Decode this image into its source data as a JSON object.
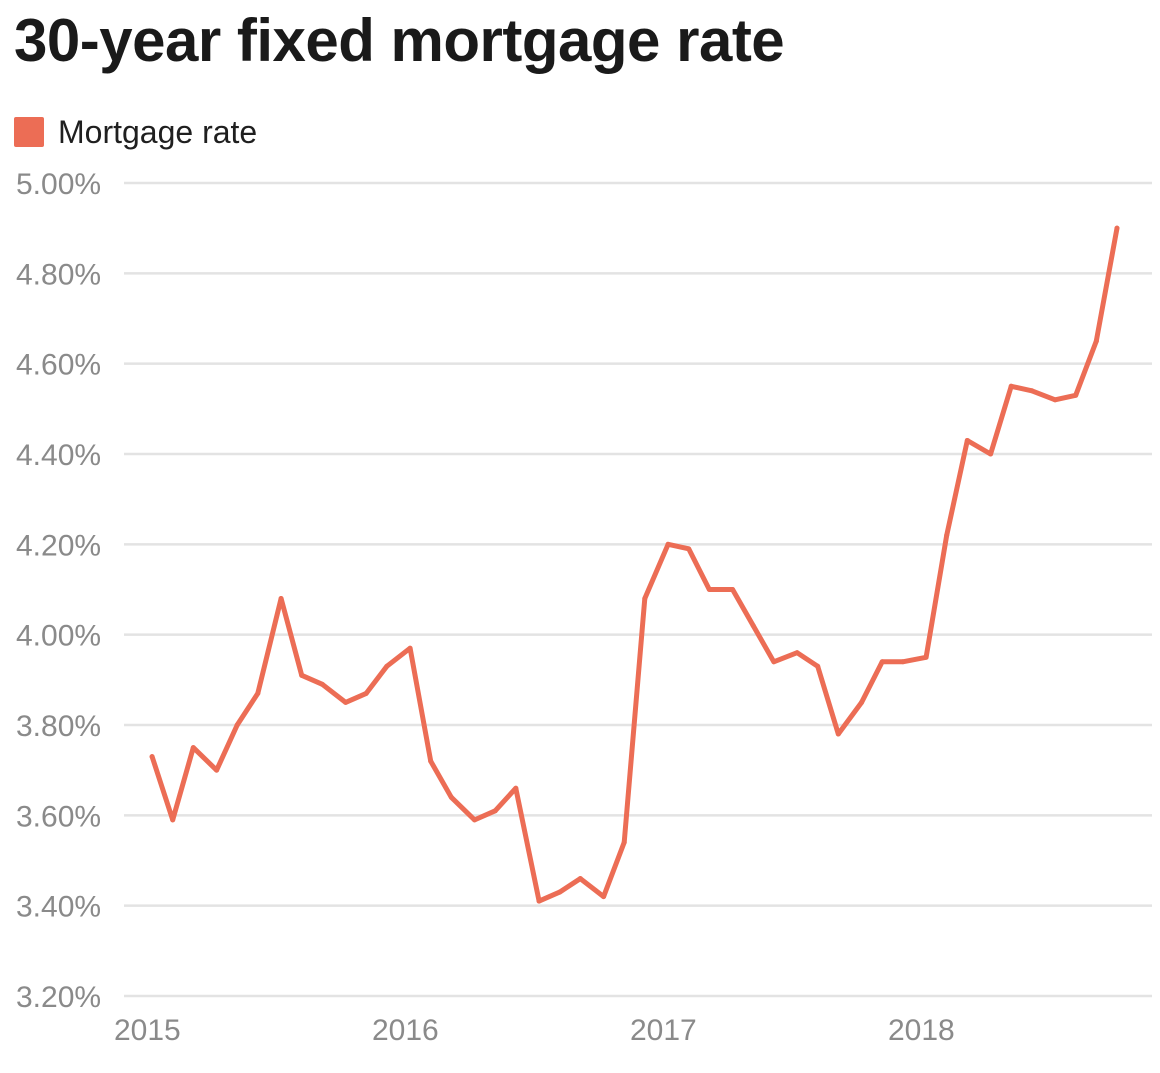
{
  "title": "30-year fixed mortgage rate",
  "legend": {
    "label": "Mortgage rate"
  },
  "colors": {
    "line": "#EC6D55",
    "grid": "#e3e3e3",
    "axis_text": "#8a8a8a",
    "title": "#1a1a1a"
  },
  "chart_data": {
    "type": "line",
    "title": "30-year fixed mortgage rate",
    "xlabel": "",
    "ylabel": "",
    "ylim": [
      3.2,
      5.0
    ],
    "xlim": [
      2015,
      2018.85
    ],
    "grid": true,
    "legend_position": "top-left",
    "y_ticks": [
      3.2,
      3.4,
      3.6,
      3.8,
      4.0,
      4.2,
      4.4,
      4.6,
      4.8,
      5.0
    ],
    "y_tick_labels": [
      "3.20%",
      "3.40%",
      "3.60%",
      "3.80%",
      "4.00%",
      "4.20%",
      "4.40%",
      "4.60%",
      "4.80%",
      "5.00%"
    ],
    "x_ticks": [
      2015,
      2016,
      2017,
      2018
    ],
    "x_tick_labels": [
      "2015",
      "2016",
      "2017",
      "2018"
    ],
    "series": [
      {
        "name": "Mortgage rate",
        "x": [
          2015.07,
          2015.15,
          2015.23,
          2015.32,
          2015.4,
          2015.48,
          2015.57,
          2015.65,
          2015.73,
          2015.82,
          2015.9,
          2015.98,
          2016.07,
          2016.15,
          2016.23,
          2016.32,
          2016.4,
          2016.48,
          2016.57,
          2016.65,
          2016.73,
          2016.82,
          2016.9,
          2016.98,
          2017.07,
          2017.15,
          2017.23,
          2017.32,
          2017.4,
          2017.48,
          2017.57,
          2017.65,
          2017.73,
          2017.82,
          2017.9,
          2017.98,
          2018.07,
          2018.15,
          2018.23,
          2018.32,
          2018.4,
          2018.48,
          2018.57,
          2018.65,
          2018.73,
          2018.81
        ],
        "y": [
          3.73,
          3.59,
          3.75,
          3.7,
          3.8,
          3.87,
          4.08,
          3.91,
          3.89,
          3.85,
          3.87,
          3.93,
          3.97,
          3.72,
          3.64,
          3.59,
          3.61,
          3.66,
          3.41,
          3.43,
          3.46,
          3.42,
          3.54,
          4.08,
          4.2,
          4.19,
          4.1,
          4.1,
          4.02,
          3.94,
          3.96,
          3.93,
          3.78,
          3.85,
          3.94,
          3.94,
          3.95,
          4.22,
          4.43,
          4.4,
          4.55,
          4.54,
          4.52,
          4.53,
          4.65,
          4.9
        ]
      }
    ]
  }
}
